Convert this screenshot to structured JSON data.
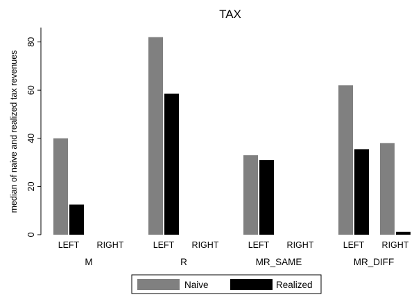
{
  "chart_data": {
    "type": "bar",
    "title": "TAX",
    "ylabel": "median of naive and realized tax revenues",
    "ylim": [
      0,
      86
    ],
    "yticks": [
      0,
      20,
      40,
      60,
      80
    ],
    "grid": false,
    "legend_position": "bottom",
    "groups": [
      "M",
      "R",
      "MR_SAME",
      "MR_DIFF"
    ],
    "subgroups": [
      "LEFT",
      "RIGHT"
    ],
    "series": [
      {
        "name": "Naive",
        "color": "#808080",
        "values": [
          [
            40,
            null
          ],
          [
            82,
            null
          ],
          [
            33,
            null
          ],
          [
            62,
            38
          ]
        ]
      },
      {
        "name": "Realized",
        "color": "#000000",
        "values": [
          [
            12.5,
            null
          ],
          [
            58.5,
            null
          ],
          [
            31,
            null
          ],
          [
            35.5,
            1.2
          ]
        ]
      }
    ]
  }
}
